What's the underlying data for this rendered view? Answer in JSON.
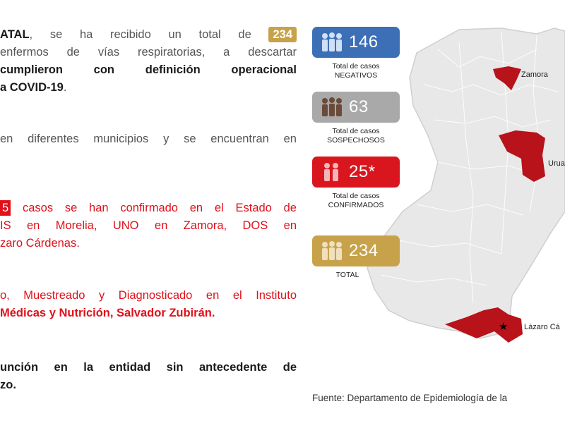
{
  "text": {
    "p1_l1_a": "ATAL",
    "p1_l1_b": ", se ha recibido un total de",
    "p1_total_badge": "234",
    "p1_l2": "enfermos de vías respiratorias, a descartar",
    "p1_l3": "cumplieron con definición operacional",
    "p1_l4_a": "a COVID-19",
    "p1_l4_b": ".",
    "p2_l1": "en diferentes municipios y se encuentran en",
    "p3_badge": "5",
    "p3_l1": "casos se han confirmado en el Estado de",
    "p3_l2": "IS en Morelia, UNO en Zamora, DOS en",
    "p3_l3": "zaro Cárdenas.",
    "p4_l1": "o, Muestreado y Diagnosticado en el Instituto",
    "p4_l2": "Médicas y Nutrición, Salvador Zubirán.",
    "p5_l1": "unción en la entidad sin antecedente de",
    "p5_l2": "zo."
  },
  "stats": [
    {
      "value": "146",
      "caption_l1": "Total de casos",
      "caption_l2": "NEGATIVOS",
      "color": "#3d6fb6",
      "icon": "people-icon"
    },
    {
      "value": "63",
      "caption_l1": "Total de casos",
      "caption_l2": "SOSPECHOSOS",
      "color": "#a9a9a9",
      "icon": "people-icon"
    },
    {
      "value": "25*",
      "caption_l1": "Total de casos",
      "caption_l2": "CONFIRMADOS",
      "color": "#d9161e",
      "icon": "people-icon"
    },
    {
      "value": "234",
      "caption_l1": "TOTAL",
      "caption_l2": "",
      "color": "#c8a24a",
      "icon": "people-icon"
    }
  ],
  "map": {
    "labels": {
      "zamora": "Zamora",
      "uruapan": "Urua",
      "lazaro": "Lázaro Cá"
    },
    "region_color": "#e8e8e8",
    "highlight_color": "#b8121b"
  },
  "source": "Fuente: Departamento de Epidemiología de la"
}
